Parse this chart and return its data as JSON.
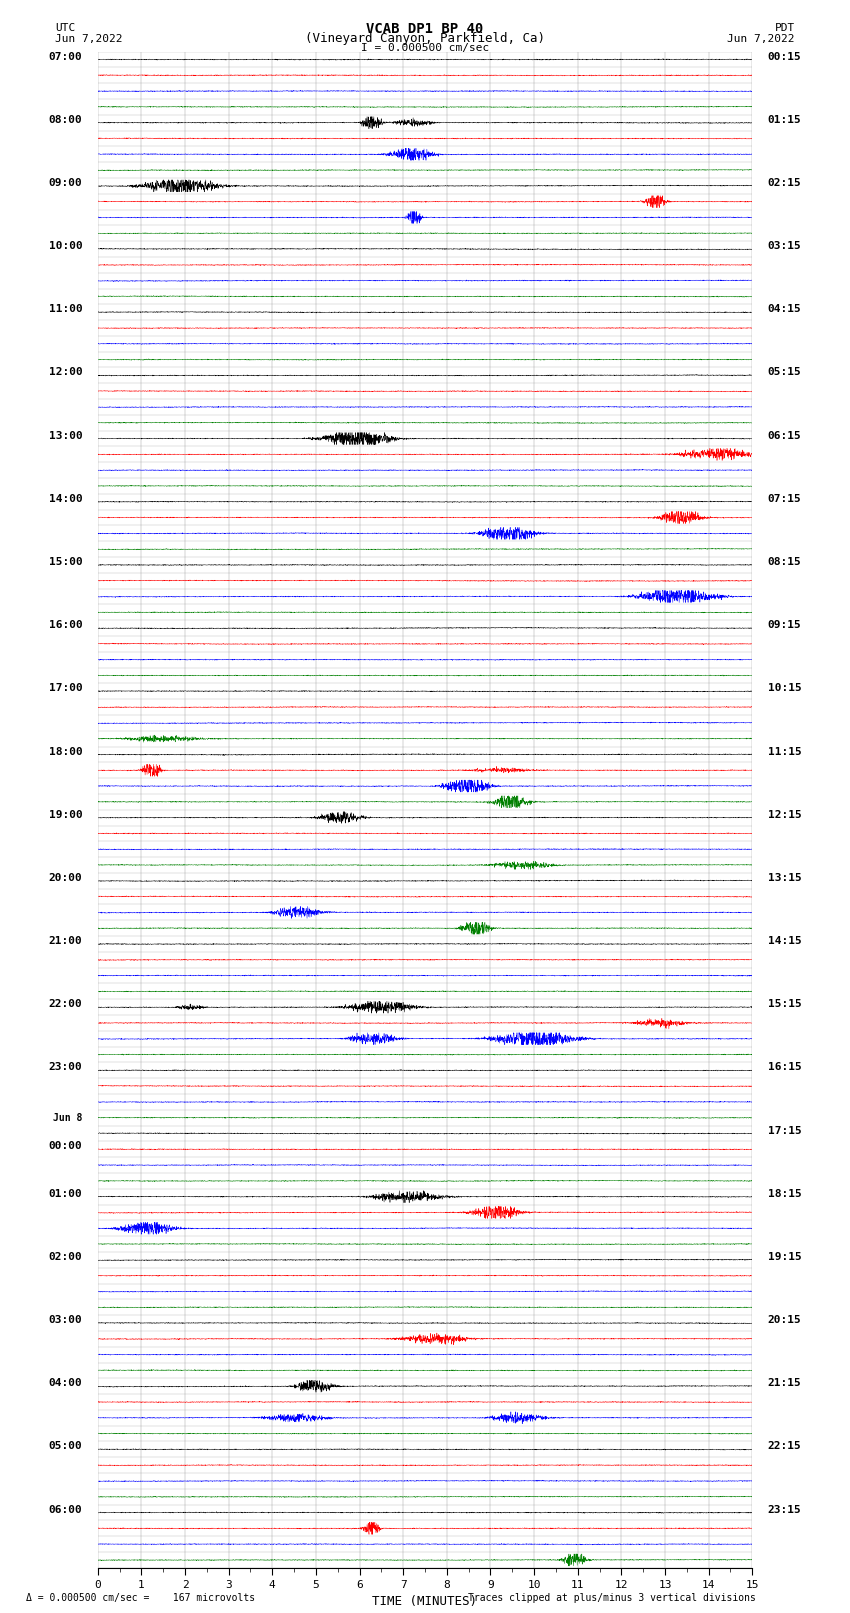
{
  "title_line1": "VCAB DP1 BP 40",
  "title_line2": "(Vineyard Canyon, Parkfield, Ca)",
  "scale_label": "I = 0.000500 cm/sec",
  "utc_label": "UTC",
  "utc_date": "Jun 7,2022",
  "pdt_label": "PDT",
  "pdt_date": "Jun 7,2022",
  "left_times": [
    "07:00",
    "",
    "",
    "",
    "08:00",
    "",
    "",
    "",
    "09:00",
    "",
    "",
    "",
    "10:00",
    "",
    "",
    "",
    "11:00",
    "",
    "",
    "",
    "12:00",
    "",
    "",
    "",
    "13:00",
    "",
    "",
    "",
    "14:00",
    "",
    "",
    "",
    "15:00",
    "",
    "",
    "",
    "16:00",
    "",
    "",
    "",
    "17:00",
    "",
    "",
    "",
    "18:00",
    "",
    "",
    "",
    "19:00",
    "",
    "",
    "",
    "20:00",
    "",
    "",
    "",
    "21:00",
    "",
    "",
    "",
    "22:00",
    "",
    "",
    "",
    "23:00",
    "",
    "",
    "",
    "Jun 8",
    "00:00",
    "",
    "",
    "01:00",
    "",
    "",
    "",
    "02:00",
    "",
    "",
    "",
    "03:00",
    "",
    "",
    "",
    "04:00",
    "",
    "",
    "",
    "05:00",
    "",
    "",
    "",
    "06:00",
    "",
    "",
    ""
  ],
  "right_times": [
    "00:15",
    "",
    "",
    "",
    "01:15",
    "",
    "",
    "",
    "02:15",
    "",
    "",
    "",
    "03:15",
    "",
    "",
    "",
    "04:15",
    "",
    "",
    "",
    "05:15",
    "",
    "",
    "",
    "06:15",
    "",
    "",
    "",
    "07:15",
    "",
    "",
    "",
    "08:15",
    "",
    "",
    "",
    "09:15",
    "",
    "",
    "",
    "10:15",
    "",
    "",
    "",
    "11:15",
    "",
    "",
    "",
    "12:15",
    "",
    "",
    "",
    "13:15",
    "",
    "",
    "",
    "14:15",
    "",
    "",
    "",
    "15:15",
    "",
    "",
    "",
    "16:15",
    "",
    "",
    "",
    "17:15",
    "",
    "",
    "",
    "18:15",
    "",
    "",
    "",
    "19:15",
    "",
    "",
    "",
    "20:15",
    "",
    "",
    "",
    "21:15",
    "",
    "",
    "",
    "22:15",
    "",
    "",
    "",
    "23:15",
    "",
    "",
    ""
  ],
  "colors": [
    "black",
    "red",
    "blue",
    "green"
  ],
  "n_rows": 96,
  "xlabel": "TIME (MINUTES)",
  "xticks": [
    0,
    1,
    2,
    3,
    4,
    5,
    6,
    7,
    8,
    9,
    10,
    11,
    12,
    13,
    14,
    15
  ],
  "footer_left": "0.000500 cm/sec =    167 microvolts",
  "footer_right": "Traces clipped at plus/minus 3 vertical divisions",
  "bg_color": "#ffffff",
  "noise_base": 0.012,
  "clip_val": 0.38
}
